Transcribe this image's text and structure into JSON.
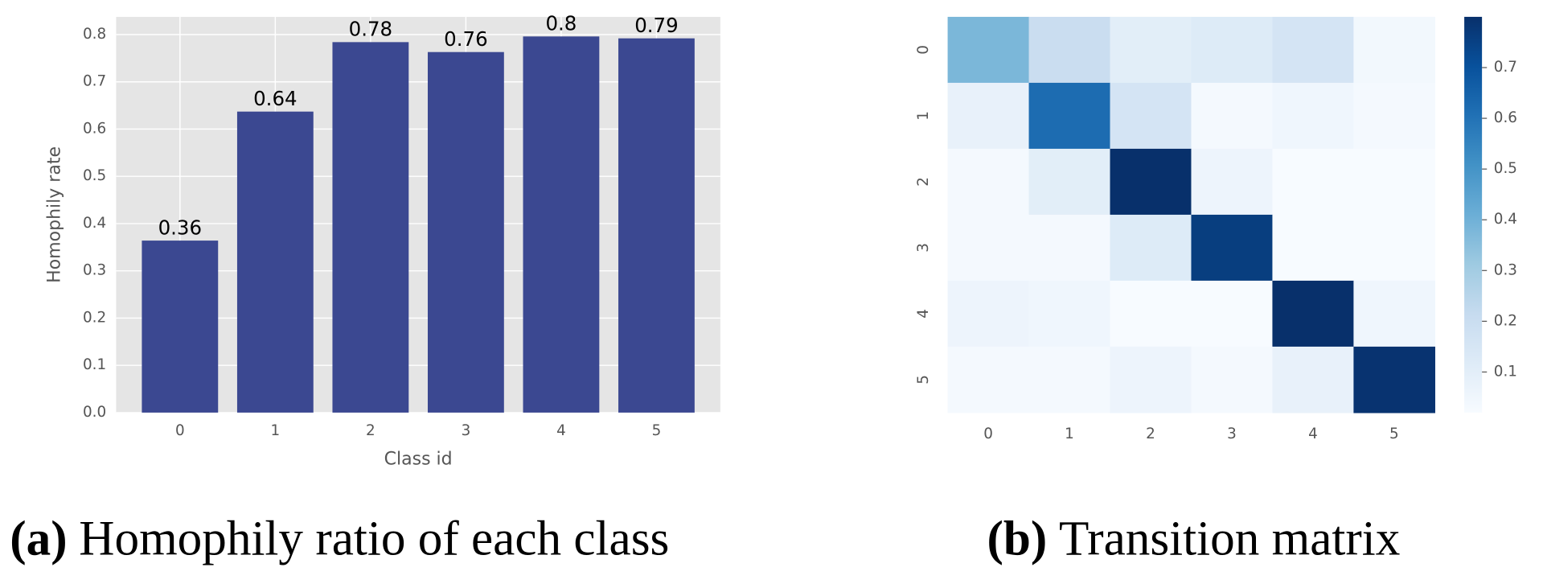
{
  "chart_data": [
    {
      "type": "bar",
      "categories": [
        "0",
        "1",
        "2",
        "3",
        "4",
        "5"
      ],
      "values": [
        0.364,
        0.637,
        0.784,
        0.763,
        0.796,
        0.792
      ],
      "value_labels": [
        "0.36",
        "0.64",
        "0.78",
        "0.76",
        "0.8",
        "0.79"
      ],
      "color": "#3b4891",
      "xlabel": "Class id",
      "ylabel": "Homophily rate",
      "ylim": [
        0,
        0.8375
      ],
      "yticks": [
        {
          "value": 0,
          "label": "0.0"
        },
        0.1,
        0.2,
        0.3,
        0.4,
        0.5,
        0.6,
        0.7,
        0.8
      ],
      "grid": true,
      "background": "#e5e5e5"
    },
    {
      "type": "heatmap",
      "x": [
        "0",
        "1",
        "2",
        "3",
        "4",
        "5"
      ],
      "y": [
        "0",
        "1",
        "2",
        "3",
        "4",
        "5"
      ],
      "values": [
        [
          0.38,
          0.2,
          0.1,
          0.12,
          0.16,
          0.04
        ],
        [
          0.08,
          0.62,
          0.16,
          0.03,
          0.05,
          0.03
        ],
        [
          0.03,
          0.1,
          0.8,
          0.06,
          0.02,
          0.02
        ],
        [
          0.03,
          0.03,
          0.12,
          0.76,
          0.02,
          0.02
        ],
        [
          0.06,
          0.05,
          0.02,
          0.02,
          0.8,
          0.05
        ],
        [
          0.03,
          0.03,
          0.06,
          0.03,
          0.08,
          0.79
        ]
      ],
      "clim": [
        0.02,
        0.8
      ],
      "colorbar_ticks": [
        0.1,
        0.2,
        0.3,
        0.4,
        0.5,
        0.6,
        0.7
      ],
      "colormap": [
        "#f7fbff",
        "#deebf7",
        "#c6dbef",
        "#9ecae1",
        "#6baed6",
        "#4292c6",
        "#2171b5",
        "#08519c",
        "#08306b"
      ]
    }
  ],
  "captions": [
    {
      "label": "(a)",
      "text": "Homophily ratio of each class"
    },
    {
      "label": "(b)",
      "text": "Transition matrix"
    }
  ]
}
